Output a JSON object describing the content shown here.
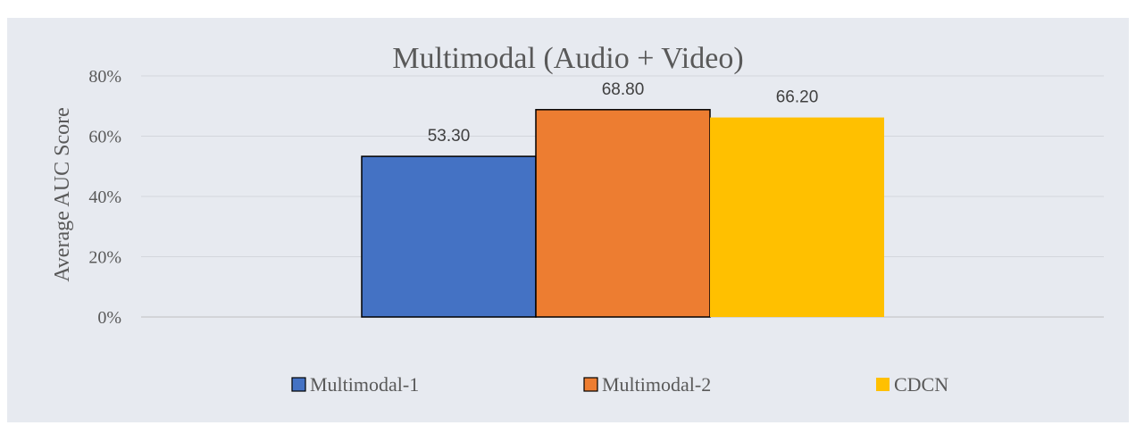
{
  "chart_data": {
    "type": "bar",
    "title": "Multimodal (Audio + Video)",
    "xlabel": "",
    "ylabel": "Average AUC Score",
    "ylim": [
      0,
      80
    ],
    "yticks": [
      "0%",
      "20%",
      "40%",
      "60%",
      "80%"
    ],
    "ytick_values": [
      0,
      20,
      40,
      60,
      80
    ],
    "grid": true,
    "legend_position": "bottom",
    "background_color": "#E7EAF0",
    "series": [
      {
        "name": "Multimodal-1",
        "values": [
          53.3
        ],
        "label": "53.30",
        "color": "#4472C4",
        "outline": true
      },
      {
        "name": "Multimodal-2",
        "values": [
          68.8
        ],
        "label": "68.80",
        "color": "#ED7D31",
        "outline": true
      },
      {
        "name": "CDCN",
        "values": [
          66.2
        ],
        "label": "66.20",
        "color": "#FFC000",
        "outline": false
      }
    ]
  }
}
